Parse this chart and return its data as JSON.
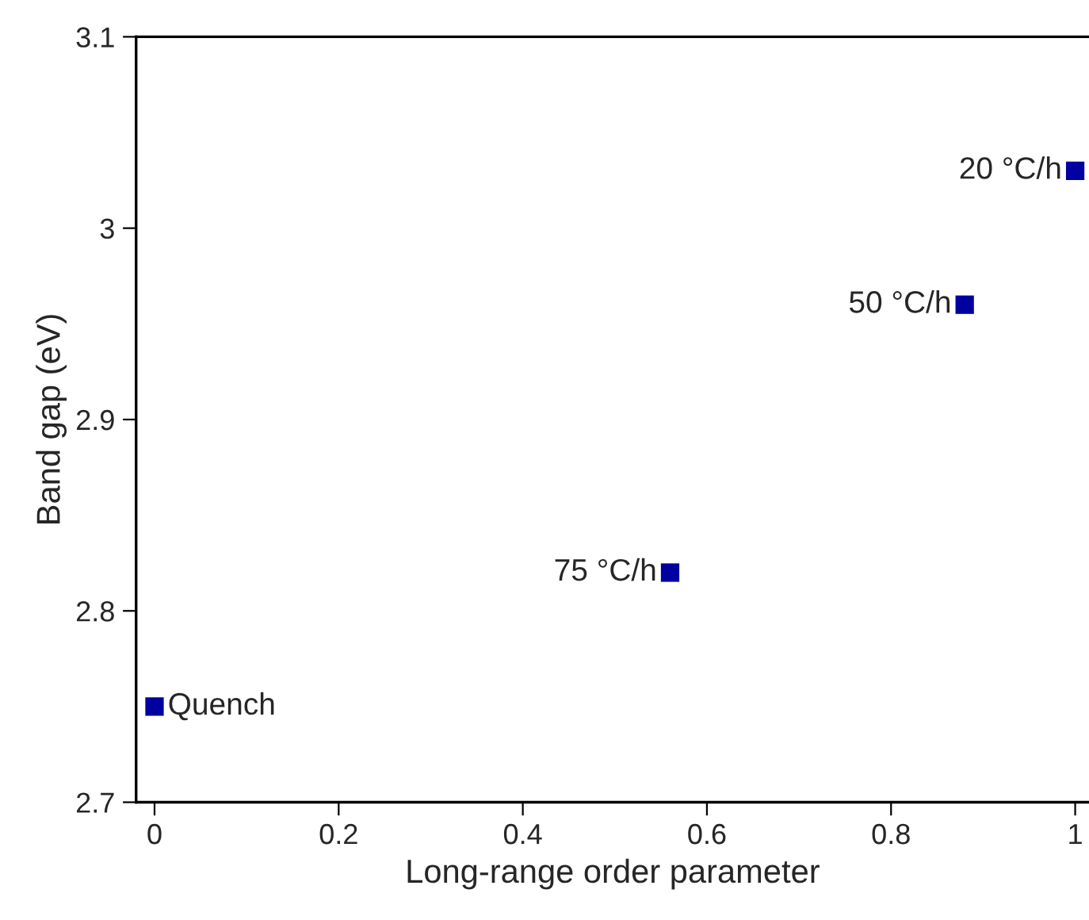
{
  "chart_data": {
    "type": "scatter",
    "xlabel": "Long-range order parameter",
    "ylabel": "Band gap (eV)",
    "x": [
      0,
      0.56,
      0.88,
      1.0
    ],
    "series": [
      {
        "color": "#0000a0",
        "values": [
          2.75,
          2.82,
          2.96,
          3.03
        ]
      }
    ],
    "marker": "square",
    "annotations": [
      {
        "text": "Quench",
        "x": 0,
        "y": 2.75
      },
      {
        "text": "75 °C/h",
        "x": 0.56,
        "y": 2.82
      },
      {
        "text": "50 °C/h",
        "x": 0.88,
        "y": 2.96
      },
      {
        "text": "20 °C/h",
        "x": 1.0,
        "y": 3.03
      }
    ],
    "xlim": [
      -0.02,
      1.015
    ],
    "xticks": [
      0,
      0.2,
      0.4,
      0.6,
      0.8,
      1
    ],
    "ylim": [
      2.7,
      3.1
    ],
    "yticks": [
      2.7,
      2.8,
      2.9,
      3,
      3.1
    ],
    "grid": false
  }
}
